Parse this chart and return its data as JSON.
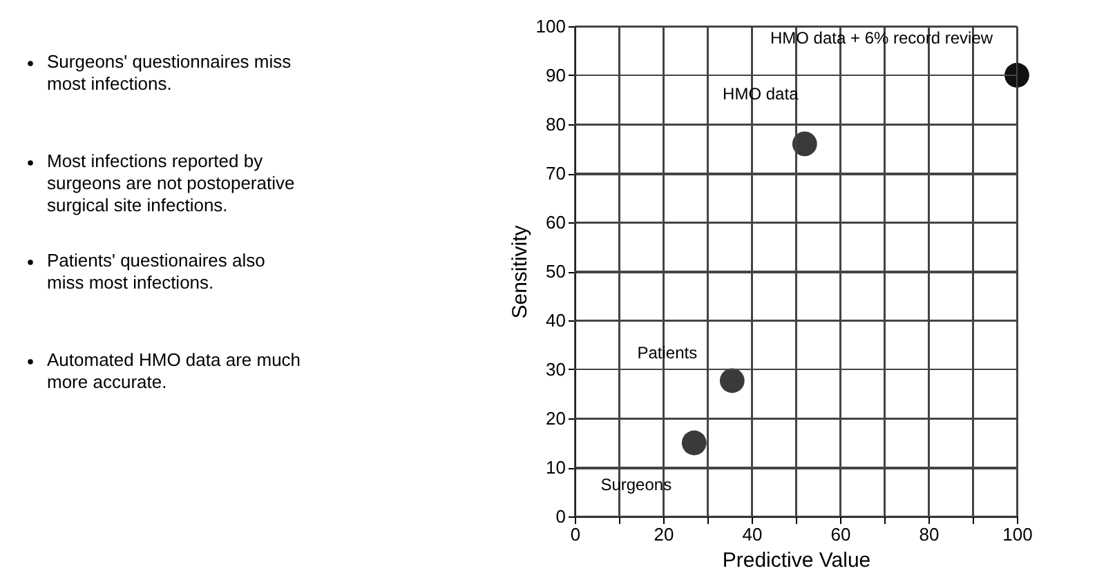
{
  "chart_data": {
    "type": "scatter",
    "xlabel": "Predictive Value",
    "ylabel": "Sensitivity",
    "series": [
      {
        "name": "Surgeons",
        "color": "#3a3a3a",
        "x": [
          27
        ],
        "values": [
          15
        ]
      },
      {
        "name": "Patients",
        "color": "#3a3a3a",
        "x": [
          35.6
        ],
        "values": [
          27.7
        ]
      },
      {
        "name": "HMO data",
        "color": "#3a3a3a",
        "x": [
          52
        ],
        "values": [
          76
        ]
      },
      {
        "name": "HMO data + 6% record review",
        "color": "#111111",
        "x": [
          100
        ],
        "values": [
          90
        ]
      }
    ],
    "xlim": [
      0,
      100
    ],
    "ylim": [
      0,
      100
    ],
    "xticks": [
      0,
      {
        "value": 10,
        "label": null
      },
      20,
      {
        "value": 30,
        "label": null
      },
      40,
      {
        "value": 50,
        "label": null
      },
      60,
      {
        "value": 70,
        "label": null
      },
      80,
      {
        "value": 90,
        "label": null
      },
      100
    ],
    "yticks": [
      0,
      10,
      20,
      30,
      40,
      50,
      60,
      70,
      80,
      90,
      100
    ],
    "grid": true,
    "legend": false,
    "marker": "circle",
    "annotations": [
      "Surgeons' questionnaires miss most infections.",
      "Most infections reported by surgeons are not postoperative surgical site infections.",
      "Patients' questionaires also miss most infections.",
      "Automated HMO data are much more accurate."
    ]
  }
}
